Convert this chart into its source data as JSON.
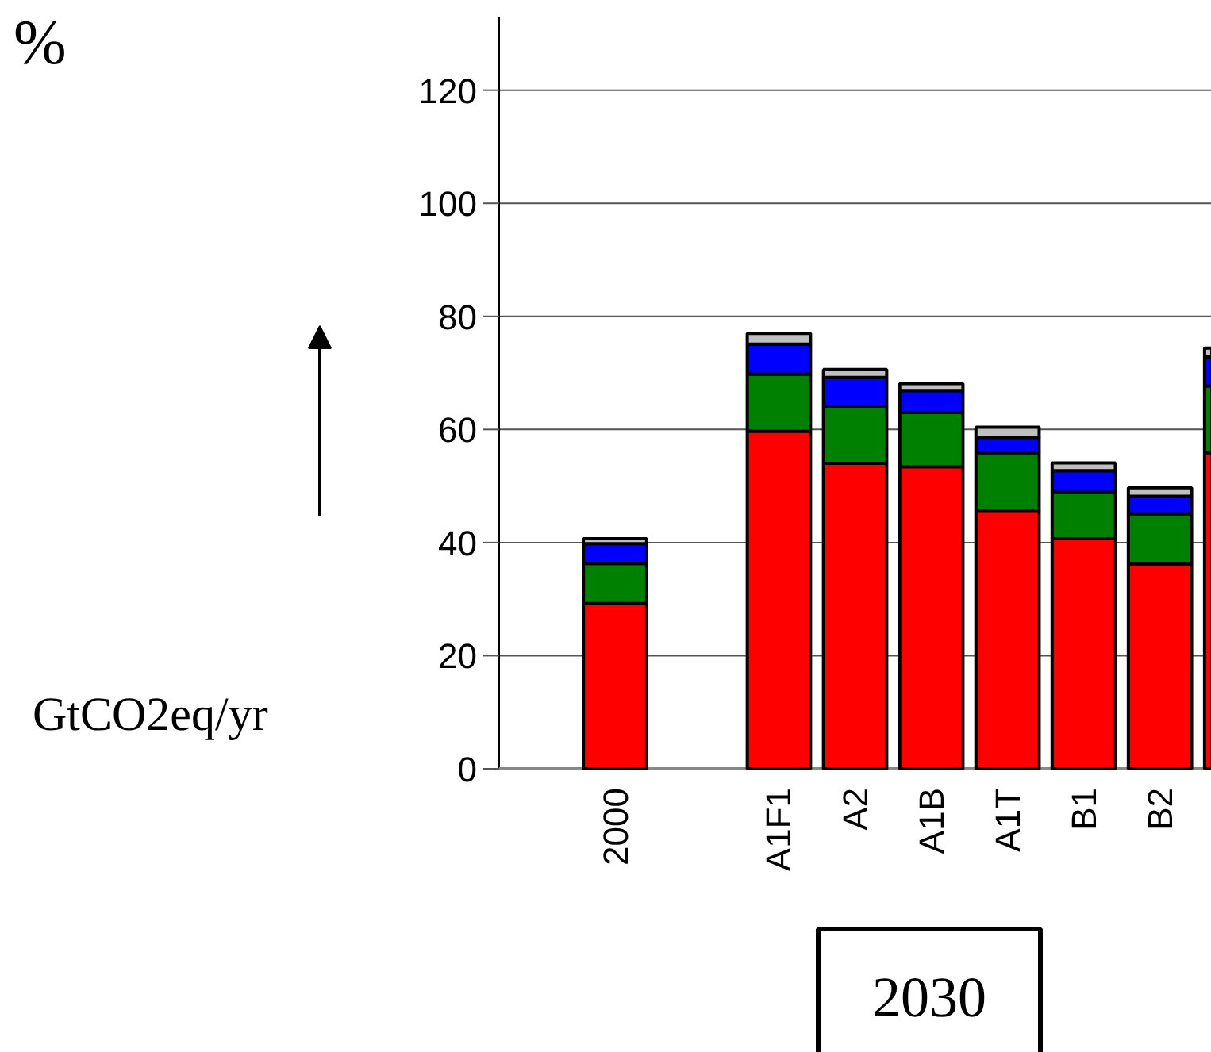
{
  "chart_data": {
    "type": "bar",
    "stacked": true,
    "ylabel": "GtCO2eq/yr",
    "categories": [
      "2000",
      "A1F1",
      "A2",
      "A1B",
      "A1T",
      "B1",
      "B2",
      null
    ],
    "series": [
      {
        "color": "#ff0000",
        "values": [
          29.2,
          59.7,
          54.0,
          53.4,
          45.7,
          40.7,
          36.2,
          55.9
        ]
      },
      {
        "color": "#008000",
        "values": [
          7.1,
          10.1,
          10.1,
          9.6,
          10.2,
          8.2,
          8.9,
          11.8
        ]
      },
      {
        "color": "#0000ff",
        "values": [
          3.5,
          5.3,
          5.1,
          3.9,
          2.7,
          3.8,
          3.1,
          5.1
        ]
      },
      {
        "color": "#c0c0c0",
        "values": [
          0.9,
          1.9,
          1.4,
          1.2,
          1.8,
          1.4,
          1.5,
          1.6
        ]
      }
    ],
    "ylim": [
      0,
      133
    ],
    "yticks": [
      0,
      20,
      40,
      60,
      80,
      100,
      120
    ],
    "grid": "y",
    "annotations": [
      "%",
      "2030"
    ]
  }
}
